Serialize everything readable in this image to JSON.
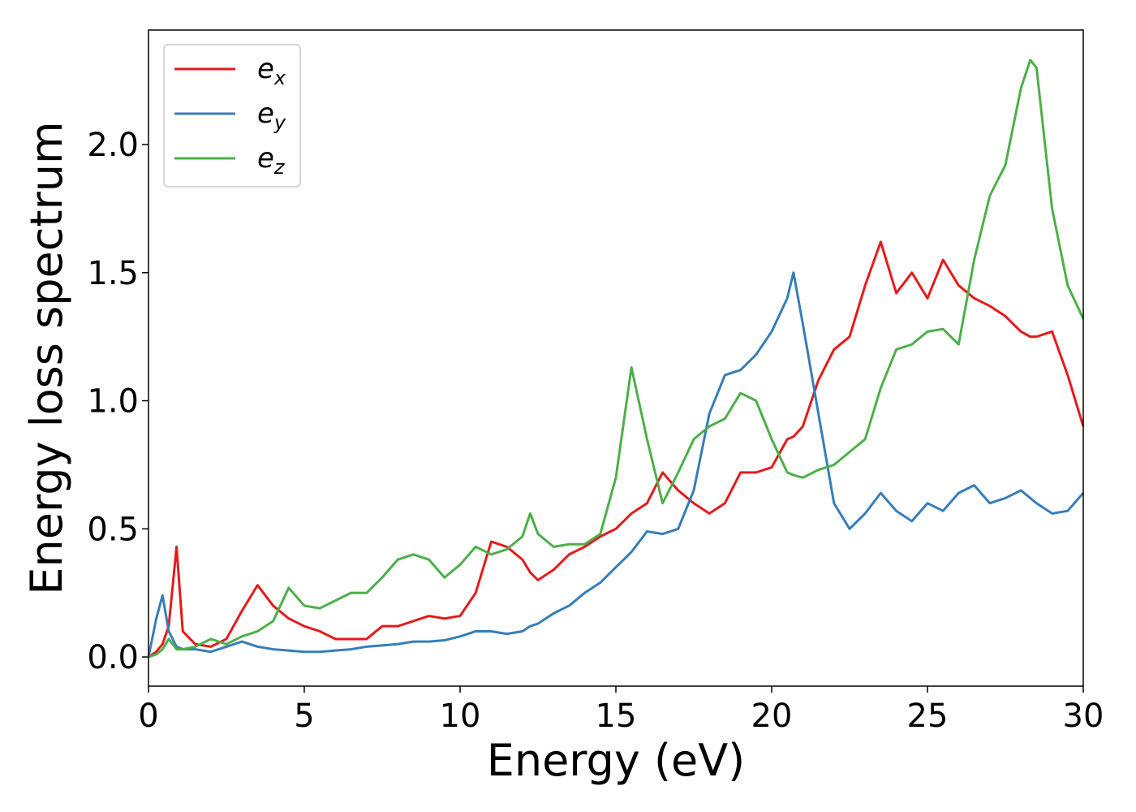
{
  "chart_data": {
    "type": "line",
    "x_label": "Energy (eV)",
    "y_label": "Energy loss spectrum",
    "xlim": [
      0,
      30
    ],
    "xticks": [
      0,
      5,
      10,
      15,
      20,
      25,
      30
    ],
    "ylim": [
      -0.114,
      2.447
    ],
    "yticks": [
      {
        "value": 0,
        "label": "0.0"
      },
      0.5,
      {
        "value": 1,
        "label": "1.0"
      },
      1.5,
      {
        "value": 2,
        "label": "2.0"
      }
    ],
    "legend": "upper left",
    "x": [
      0,
      0.25,
      0.45,
      0.65,
      0.9,
      1.1,
      1.5,
      2,
      2.5,
      3,
      3.5,
      4,
      4.5,
      5,
      5.5,
      6,
      6.5,
      7,
      7.5,
      8,
      8.5,
      9,
      9.5,
      10,
      10.5,
      11,
      11.5,
      12,
      12.25,
      12.5,
      13,
      13.5,
      14,
      14.5,
      15,
      15.5,
      16,
      16.5,
      17,
      17.5,
      18,
      18.5,
      19,
      19.5,
      20,
      20.5,
      20.7,
      21,
      21.5,
      22,
      22.5,
      23,
      23.5,
      24,
      24.5,
      25,
      25.5,
      26,
      26.5,
      27,
      27.5,
      28,
      28.3,
      28.5,
      29,
      29.5,
      30
    ],
    "series": [
      {
        "name": "e_x",
        "color": "#e41a1c",
        "values": [
          0,
          0.02,
          0.05,
          0.12,
          0.43,
          0.1,
          0.05,
          0.04,
          0.07,
          0.18,
          0.28,
          0.2,
          0.15,
          0.12,
          0.1,
          0.07,
          0.07,
          0.07,
          0.12,
          0.12,
          0.14,
          0.16,
          0.15,
          0.16,
          0.25,
          0.45,
          0.43,
          0.38,
          0.33,
          0.3,
          0.34,
          0.4,
          0.43,
          0.47,
          0.5,
          0.56,
          0.6,
          0.72,
          0.65,
          0.6,
          0.56,
          0.6,
          0.72,
          0.72,
          0.74,
          0.85,
          0.86,
          0.9,
          1.08,
          1.2,
          1.25,
          1.45,
          1.62,
          1.42,
          1.5,
          1.4,
          1.55,
          1.45,
          1.4,
          1.37,
          1.33,
          1.27,
          1.25,
          1.25,
          1.27,
          1.1,
          0.9
        ]
      },
      {
        "name": "e_y",
        "color": "#377eb8",
        "values": [
          0,
          0.15,
          0.24,
          0.1,
          0.04,
          0.03,
          0.03,
          0.02,
          0.04,
          0.06,
          0.04,
          0.03,
          0.025,
          0.02,
          0.02,
          0.025,
          0.03,
          0.04,
          0.045,
          0.05,
          0.06,
          0.06,
          0.065,
          0.08,
          0.1,
          0.1,
          0.09,
          0.1,
          0.12,
          0.13,
          0.17,
          0.2,
          0.25,
          0.29,
          0.35,
          0.41,
          0.49,
          0.48,
          0.5,
          0.65,
          0.95,
          1.1,
          1.12,
          1.18,
          1.27,
          1.4,
          1.5,
          1.3,
          0.95,
          0.6,
          0.5,
          0.56,
          0.64,
          0.57,
          0.53,
          0.6,
          0.57,
          0.64,
          0.67,
          0.6,
          0.62,
          0.65,
          0.62,
          0.6,
          0.56,
          0.57,
          0.64
        ]
      },
      {
        "name": "e_z",
        "color": "#4daf4a",
        "values": [
          0,
          0.01,
          0.03,
          0.07,
          0.03,
          0.03,
          0.04,
          0.07,
          0.05,
          0.08,
          0.1,
          0.14,
          0.27,
          0.2,
          0.19,
          0.22,
          0.25,
          0.25,
          0.31,
          0.38,
          0.4,
          0.38,
          0.31,
          0.36,
          0.43,
          0.4,
          0.42,
          0.47,
          0.56,
          0.48,
          0.43,
          0.44,
          0.44,
          0.48,
          0.7,
          1.13,
          0.85,
          0.6,
          0.72,
          0.85,
          0.9,
          0.93,
          1.03,
          1.0,
          0.85,
          0.72,
          0.71,
          0.7,
          0.73,
          0.75,
          0.8,
          0.85,
          1.05,
          1.2,
          1.22,
          1.27,
          1.28,
          1.22,
          1.55,
          1.8,
          1.92,
          2.22,
          2.33,
          2.3,
          1.75,
          1.45,
          1.32
        ]
      }
    ]
  }
}
